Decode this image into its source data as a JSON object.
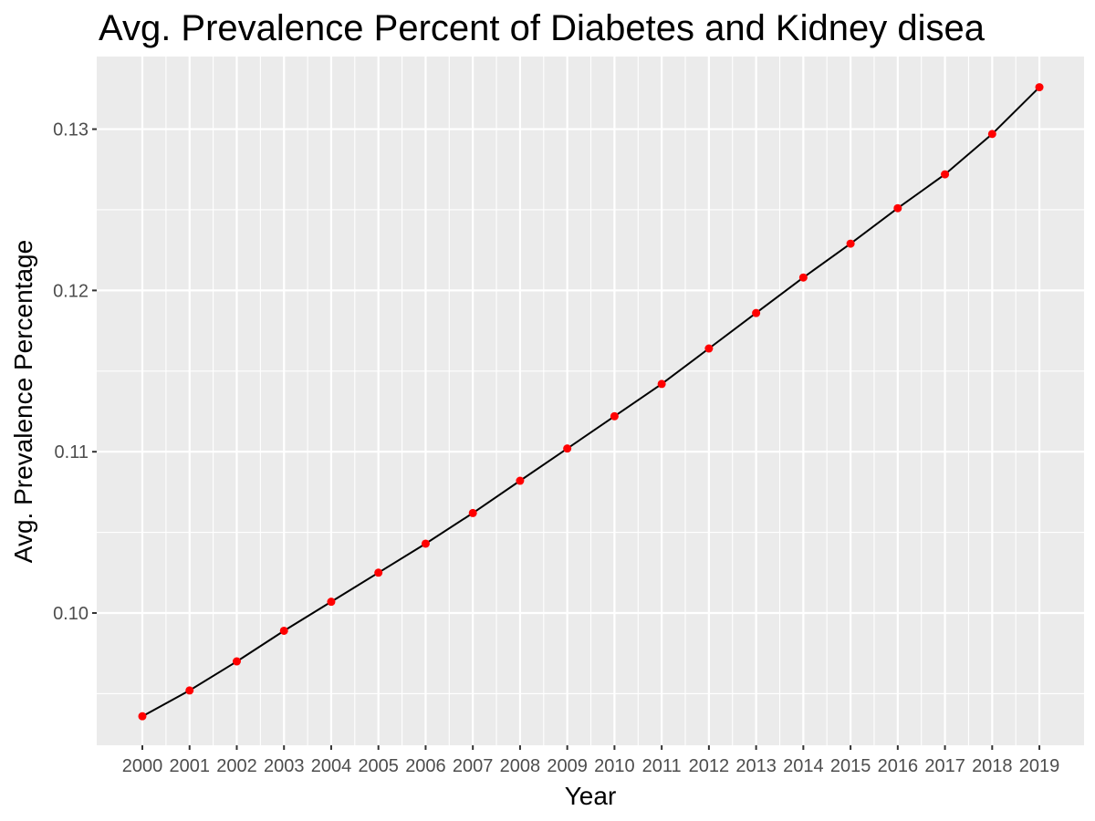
{
  "chart_data": {
    "type": "line",
    "title": "Avg. Prevalence Percent of Diabetes and Kidney disea",
    "xlabel": "Year",
    "ylabel": "Avg. Prevalence Percentage",
    "x": [
      "2000",
      "2001",
      "2002",
      "2003",
      "2004",
      "2005",
      "2006",
      "2007",
      "2008",
      "2009",
      "2010",
      "2011",
      "2012",
      "2013",
      "2014",
      "2015",
      "2016",
      "2017",
      "2018",
      "2019"
    ],
    "y": [
      0.0936,
      0.0952,
      0.097,
      0.0989,
      0.1007,
      0.1025,
      0.1043,
      0.1062,
      0.1082,
      0.1102,
      0.1122,
      0.1142,
      0.1164,
      0.1186,
      0.1208,
      0.1229,
      0.1251,
      0.1272,
      0.1297,
      0.1326
    ],
    "ylim": [
      0.0918,
      0.1345
    ],
    "yticks": [
      0.1,
      0.11,
      0.12,
      0.13
    ],
    "ytick_labels": [
      "0.10",
      "0.11",
      "0.12",
      "0.13"
    ],
    "grid": true,
    "line_color": "#000000",
    "point_color": "#ff0000",
    "panel_background": "#ebebeb",
    "grid_color": "#ffffff"
  }
}
